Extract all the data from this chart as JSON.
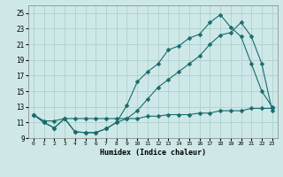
{
  "title": "",
  "xlabel": "Humidex (Indice chaleur)",
  "bg_color": "#cee8e8",
  "grid_color": "#aed0d0",
  "line_color": "#1a6b6b",
  "xlim": [
    -0.5,
    23.5
  ],
  "ylim": [
    9.0,
    26.0
  ],
  "yticks": [
    9,
    11,
    13,
    15,
    17,
    19,
    21,
    23,
    25
  ],
  "xticks": [
    0,
    1,
    2,
    3,
    4,
    5,
    6,
    7,
    8,
    9,
    10,
    11,
    12,
    13,
    14,
    15,
    16,
    17,
    18,
    19,
    20,
    21,
    22,
    23
  ],
  "line1_x": [
    0,
    1,
    2,
    3,
    4,
    5,
    6,
    7,
    8,
    9,
    10,
    11,
    12,
    13,
    14,
    15,
    16,
    17,
    18,
    19,
    20,
    21,
    22,
    23
  ],
  "line1_y": [
    12.0,
    11.0,
    10.3,
    11.5,
    9.8,
    9.7,
    9.7,
    10.2,
    11.0,
    13.2,
    16.2,
    17.5,
    18.5,
    20.3,
    20.8,
    21.8,
    22.3,
    23.8,
    24.8,
    23.2,
    22.0,
    18.5,
    15.0,
    13.0
  ],
  "line2_x": [
    0,
    1,
    2,
    3,
    4,
    5,
    6,
    7,
    8,
    9,
    10,
    11,
    12,
    13,
    14,
    15,
    16,
    17,
    18,
    19,
    20,
    21,
    22,
    23
  ],
  "line2_y": [
    12.0,
    11.0,
    10.3,
    11.5,
    9.8,
    9.7,
    9.7,
    10.2,
    11.0,
    11.5,
    12.5,
    14.0,
    15.5,
    16.5,
    17.5,
    18.5,
    19.5,
    21.0,
    22.2,
    22.5,
    23.8,
    22.0,
    18.5,
    12.5
  ],
  "line3_x": [
    0,
    1,
    2,
    3,
    4,
    5,
    6,
    7,
    8,
    9,
    10,
    11,
    12,
    13,
    14,
    15,
    16,
    17,
    18,
    19,
    20,
    21,
    22,
    23
  ],
  "line3_y": [
    12.0,
    11.2,
    11.2,
    11.5,
    11.5,
    11.5,
    11.5,
    11.5,
    11.5,
    11.5,
    11.5,
    11.8,
    11.8,
    12.0,
    12.0,
    12.0,
    12.2,
    12.2,
    12.5,
    12.5,
    12.5,
    12.8,
    12.8,
    12.8
  ]
}
